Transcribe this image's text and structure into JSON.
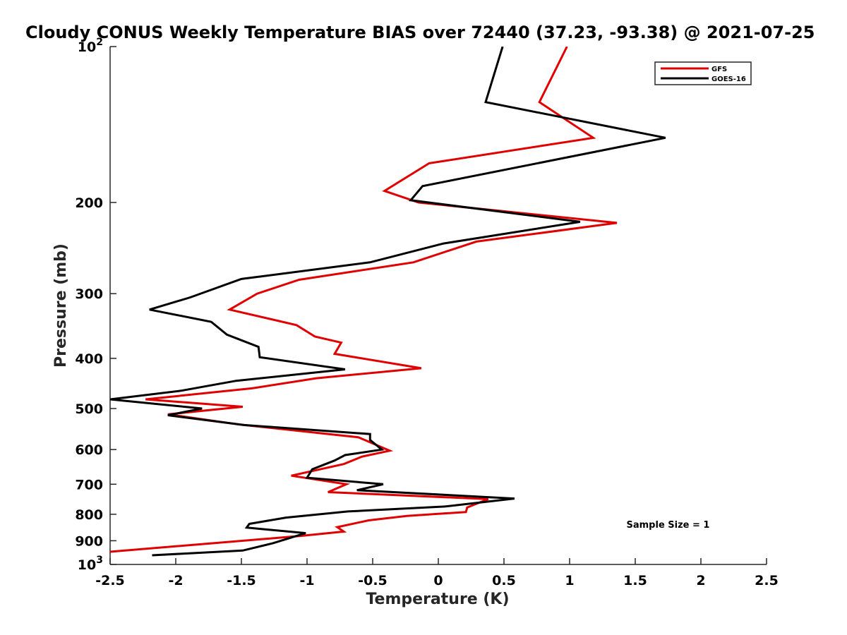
{
  "chart_data": {
    "type": "line",
    "title": "Cloudy CONUS Weekly Temperature BIAS over 72440 (37.23, -93.38) @ 2021-07-25",
    "xlabel": "Temperature (K)",
    "ylabel": "Pressure (mb)",
    "xlim": [
      -2.5,
      2.5
    ],
    "ylim": [
      100,
      1000
    ],
    "y_scale": "log",
    "y_reversed": true,
    "grid": false,
    "legend_position": "top-right",
    "x_ticks": [
      -2.5,
      -2,
      -1.5,
      -1,
      -0.5,
      0,
      0.5,
      1,
      1.5,
      2,
      2.5
    ],
    "x_tick_labels": [
      "-2.5",
      "-2",
      "-1.5",
      "-1",
      "-0.5",
      "0",
      "0.5",
      "1",
      "1.5",
      "2",
      "2.5"
    ],
    "y_ticks": [
      {
        "value": 100,
        "label": "10",
        "sup": "2"
      },
      {
        "value": 200,
        "label": "200",
        "sup": ""
      },
      {
        "value": 300,
        "label": "300",
        "sup": ""
      },
      {
        "value": 400,
        "label": "400",
        "sup": ""
      },
      {
        "value": 500,
        "label": "500",
        "sup": ""
      },
      {
        "value": 600,
        "label": "600",
        "sup": ""
      },
      {
        "value": 700,
        "label": "700",
        "sup": ""
      },
      {
        "value": 800,
        "label": "800",
        "sup": ""
      },
      {
        "value": 900,
        "label": "900",
        "sup": ""
      },
      {
        "value": 1000,
        "label": "10",
        "sup": "3"
      }
    ],
    "series": [
      {
        "name": "GFS",
        "color": "#e00000",
        "points": [
          [
            0.98,
            100
          ],
          [
            0.77,
            128
          ],
          [
            1.18,
            150
          ],
          [
            -0.07,
            168
          ],
          [
            -0.41,
            190
          ],
          [
            -0.15,
            200
          ],
          [
            1.36,
            219
          ],
          [
            0.29,
            238
          ],
          [
            -0.19,
            261
          ],
          [
            -1.06,
            282
          ],
          [
            -1.38,
            300
          ],
          [
            -1.59,
            322
          ],
          [
            -1.08,
            345
          ],
          [
            -0.94,
            363
          ],
          [
            -0.74,
            373
          ],
          [
            -0.79,
            392
          ],
          [
            -0.13,
            418
          ],
          [
            -0.93,
            437
          ],
          [
            -1.42,
            457
          ],
          [
            -2.23,
            480
          ],
          [
            -1.49,
            496
          ],
          [
            -2.06,
            513
          ],
          [
            -1.51,
            537
          ],
          [
            -0.61,
            568
          ],
          [
            -0.37,
            603
          ],
          [
            -0.58,
            619
          ],
          [
            -0.72,
            640
          ],
          [
            -1.12,
            674
          ],
          [
            -0.7,
            700
          ],
          [
            -0.84,
            725
          ],
          [
            0.38,
            748
          ],
          [
            0.22,
            776
          ],
          [
            0.21,
            792
          ],
          [
            -0.24,
            806
          ],
          [
            -0.53,
            822
          ],
          [
            -0.77,
            847
          ],
          [
            -0.72,
            864
          ],
          [
            -1.03,
            880
          ],
          [
            -2.5,
            945
          ]
        ]
      },
      {
        "name": "GOES-16",
        "color": "#000000",
        "points": [
          [
            0.49,
            100
          ],
          [
            0.36,
            128
          ],
          [
            1.73,
            150
          ],
          [
            -0.12,
            186
          ],
          [
            -0.21,
            198
          ],
          [
            1.08,
            218
          ],
          [
            0.04,
            240
          ],
          [
            -0.52,
            261
          ],
          [
            -1.5,
            281
          ],
          [
            -1.89,
            305
          ],
          [
            -2.2,
            322
          ],
          [
            -1.73,
            340
          ],
          [
            -1.61,
            360
          ],
          [
            -1.37,
            380
          ],
          [
            -1.36,
            398
          ],
          [
            -0.71,
            420
          ],
          [
            -1.54,
            442
          ],
          [
            -1.96,
            462
          ],
          [
            -2.5,
            480
          ],
          [
            -1.8,
            500
          ],
          [
            -2.06,
            515
          ],
          [
            -1.48,
            538
          ],
          [
            -0.52,
            560
          ],
          [
            -0.52,
            575
          ],
          [
            -0.43,
            600
          ],
          [
            -0.71,
            615
          ],
          [
            -0.79,
            630
          ],
          [
            -0.96,
            655
          ],
          [
            -1.0,
            680
          ],
          [
            -0.42,
            700
          ],
          [
            -0.62,
            719
          ],
          [
            0.58,
            746
          ],
          [
            0.05,
            773
          ],
          [
            -0.69,
            790
          ],
          [
            -1.16,
            812
          ],
          [
            -1.44,
            835
          ],
          [
            -1.46,
            849
          ],
          [
            -1.01,
            870
          ],
          [
            -1.26,
            910
          ],
          [
            -1.49,
            940
          ],
          [
            -2.18,
            960
          ]
        ]
      }
    ],
    "annotations": [
      {
        "text": "Sample Size = 1",
        "x": 1.75,
        "y": 910
      }
    ]
  }
}
